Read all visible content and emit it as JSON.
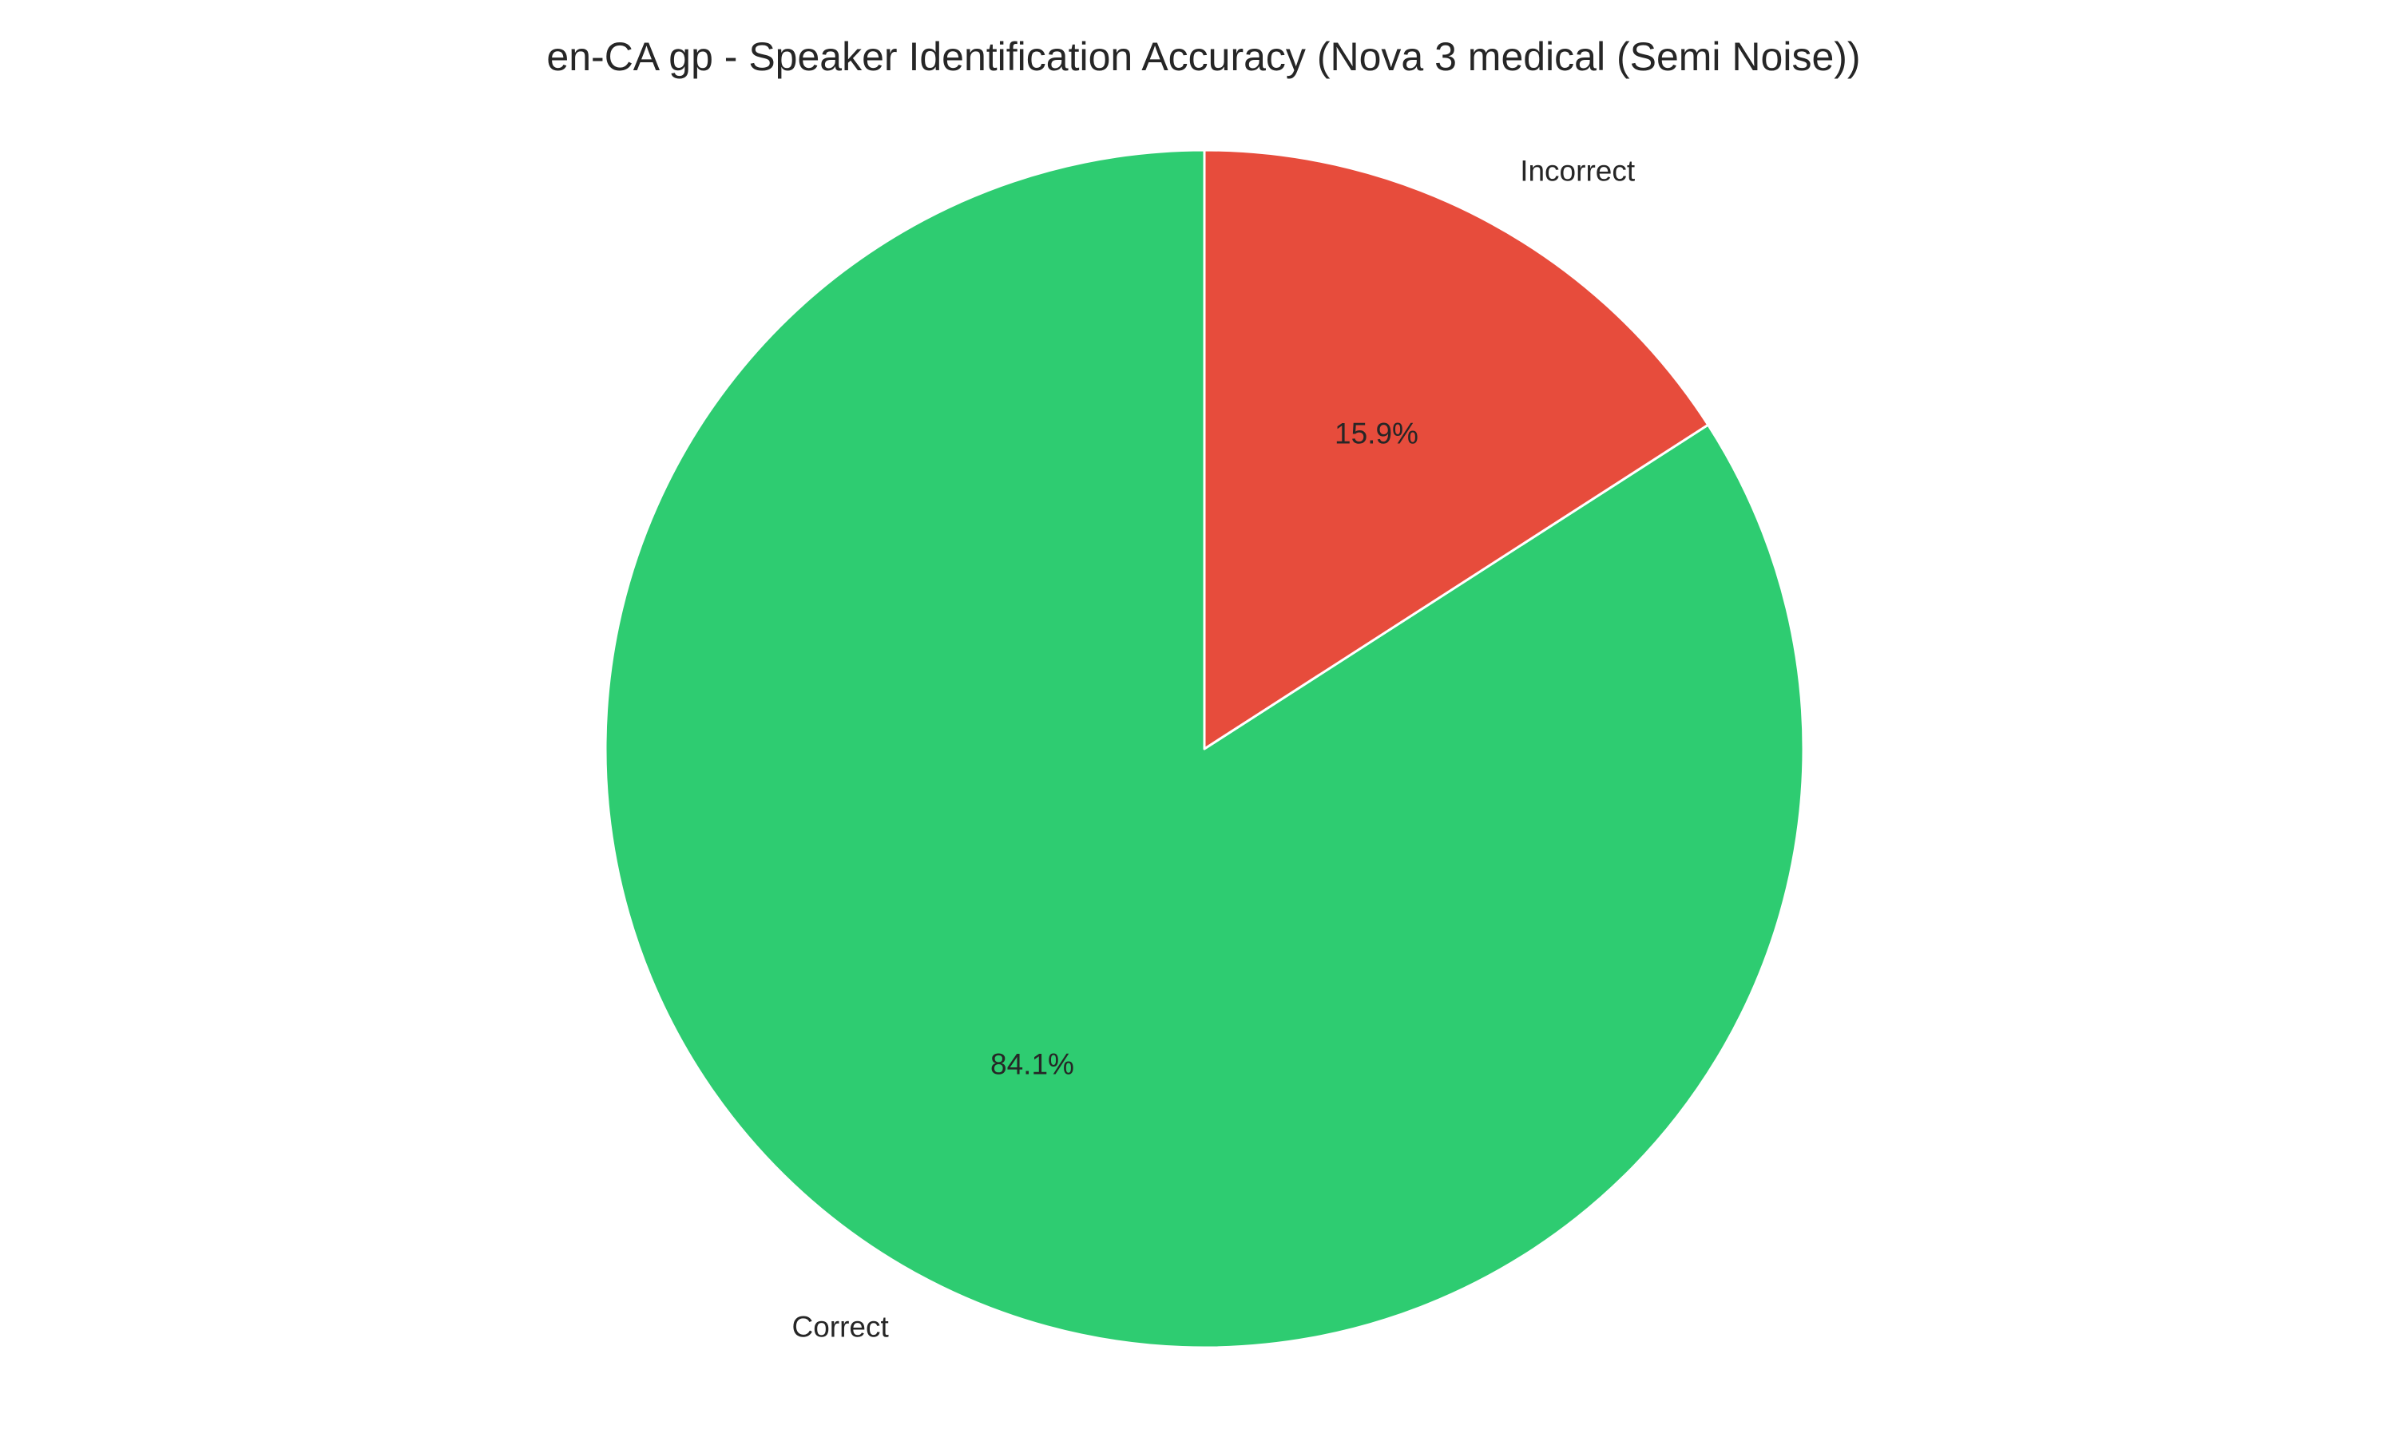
{
  "chart_data": {
    "type": "pie",
    "title": "en-CA gp - Speaker Identification Accuracy (Nova 3 medical (Semi Noise))",
    "slices": [
      {
        "label": "Correct",
        "value": 84.1,
        "pct_label": "84.1%",
        "color": "#2ecc71"
      },
      {
        "label": "Incorrect",
        "value": 15.9,
        "pct_label": "15.9%",
        "color": "#e74c3c"
      }
    ],
    "start_angle_deg": 90,
    "direction": "counterclockwise",
    "legend": "none"
  }
}
